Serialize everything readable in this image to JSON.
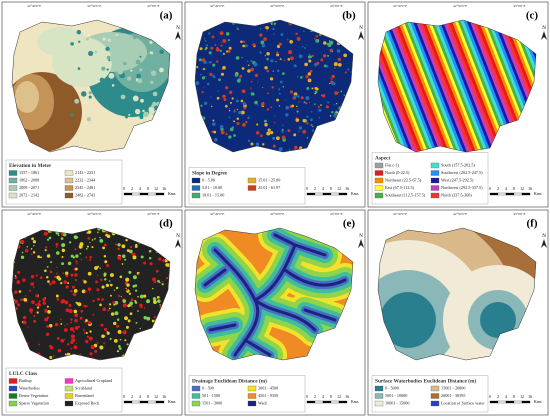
{
  "coordinates": [
    "42°40'0\"E",
    "42°50'0\"E",
    "43°0'0\"E"
  ],
  "north": "N",
  "scale_bar": {
    "ticks": [
      "0",
      "2",
      "4",
      "8",
      "12",
      "16"
    ],
    "unit": "Kms"
  },
  "panels": [
    {
      "label": "(a)",
      "legend_title": "Elevation in Meter",
      "items": [
        {
          "text": "1557 - 1861",
          "color": "#2e8b8b"
        },
        {
          "text": "1862 - 2008",
          "color": "#6fb0a0"
        },
        {
          "text": "2009 - 2071",
          "color": "#a8cdb5"
        },
        {
          "text": "2072 - 2142",
          "color": "#d8e5c5"
        },
        {
          "text": "2143 - 2231",
          "color": "#efe5c0"
        },
        {
          "text": "2232 - 2344",
          "color": "#ddc08a"
        },
        {
          "text": "2345 - 2481",
          "color": "#c49357"
        },
        {
          "text": "2482 - 2743",
          "color": "#8f5a2a"
        }
      ]
    },
    {
      "label": "(b)",
      "legend_title": "Slope in Degree",
      "items": [
        {
          "text": "0 - 5.00",
          "color": "#0d2a7a"
        },
        {
          "text": "5.01 - 10.00",
          "color": "#1f6fb5"
        },
        {
          "text": "10.01 - 15.00",
          "color": "#3fae6a"
        },
        {
          "text": "15.01 - 25.00",
          "color": "#e8b020"
        },
        {
          "text": "25.01 - 61.97",
          "color": "#d23a1c"
        }
      ]
    },
    {
      "label": "(c)",
      "legend_title": "Aspect",
      "items": [
        {
          "text": "Flat (-1)",
          "color": "#a0a0a0"
        },
        {
          "text": "North (0-22.5)",
          "color": "#e41a1c"
        },
        {
          "text": "Northeast (22.5-67.5)",
          "color": "#ff8c00"
        },
        {
          "text": "East (67.5-112.5)",
          "color": "#ffff33"
        },
        {
          "text": "Southeast (112.5-157.5)",
          "color": "#4daf4a"
        },
        {
          "text": "South (157.5-202.5)",
          "color": "#40e0d0"
        },
        {
          "text": "Southwest (202.5-247.5)",
          "color": "#1e90ff"
        },
        {
          "text": "West (247.5-292.5)",
          "color": "#1a1aa0"
        },
        {
          "text": "Northwest (292.5-337.5)",
          "color": "#c040c0"
        },
        {
          "text": "North (337.5-360)",
          "color": "#ff3030"
        }
      ]
    },
    {
      "label": "(d)",
      "legend_title": "LULC Class",
      "items": [
        {
          "text": "Builtup",
          "color": "#e31a1c"
        },
        {
          "text": "Waterbodies",
          "color": "#1f4fbf"
        },
        {
          "text": "Dense Vegetation",
          "color": "#1a7a2a"
        },
        {
          "text": "Sparse Vegetation",
          "color": "#7fd34e"
        },
        {
          "text": "Agricultural Cropland",
          "color": "#ff33cc"
        },
        {
          "text": "Scrubland",
          "color": "#c8e070"
        },
        {
          "text": "Barrenland",
          "color": "#e8d020"
        },
        {
          "text": "Exposed Rock",
          "color": "#222222"
        }
      ]
    },
    {
      "label": "(e)",
      "legend_title": "Drainage Euclidean Distance (m)",
      "items": [
        {
          "text": "0 - 500",
          "color": "#4a6ec8"
        },
        {
          "text": "501 - 1500",
          "color": "#3cbf9a"
        },
        {
          "text": "1501 - 3000",
          "color": "#8fd44a"
        },
        {
          "text": "3001 - 4500",
          "color": "#f2e22a"
        },
        {
          "text": "4501 - 9350",
          "color": "#f08a24"
        },
        {
          "text": "Wadi",
          "color": "#1a237e"
        }
      ]
    },
    {
      "label": "(f)",
      "legend_title": "Surface Waterbodies Euclidean Distance (m)",
      "items": [
        {
          "text": "0 - 5000",
          "color": "#2a7f8f"
        },
        {
          "text": "5001 - 10000",
          "color": "#8ab8b8"
        },
        {
          "text": "10001 - 15000",
          "color": "#f0ead6"
        },
        {
          "text": "15001 - 20000",
          "color": "#d9b88a"
        },
        {
          "text": "20001 - 30395",
          "color": "#a86f3a"
        },
        {
          "text": "Location of Surface water",
          "color": "#2a3fbf"
        }
      ]
    }
  ]
}
